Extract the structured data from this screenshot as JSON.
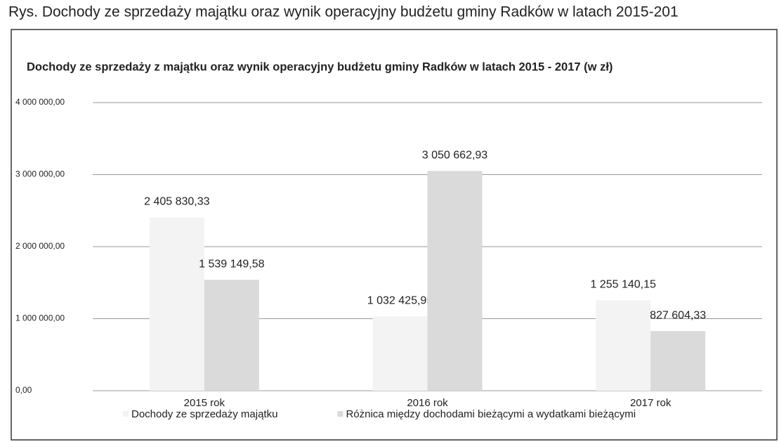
{
  "chart_data": {
    "type": "bar",
    "caption": "Rys. Dochody ze sprzedaży majątku oraz wynik operacyjny budżetu gminy Radków  w latach 2015-201",
    "title": "Dochody ze sprzedaży z majątku oraz wynik operacyjny budżetu gminy Radków  w latach 2015 - 2017 (w zł)",
    "categories": [
      "2015 rok",
      "2016 rok",
      "2017 rok"
    ],
    "series": [
      {
        "name": "Dochody ze sprzedaży majątku",
        "color": "#f3f3f3",
        "values": [
          2405830.33,
          1032425.95,
          1255140.15
        ],
        "value_labels": [
          "2 405 830,33",
          "1 032 425,95",
          "1 255 140,15"
        ]
      },
      {
        "name": "Różnica między dochodami bieżącymi a wydatkami bieżącymi",
        "color": "#dadada",
        "values": [
          1539149.58,
          3050662.93,
          827604.33
        ],
        "value_labels": [
          "1 539 149,58",
          "3 050 662,93",
          "827 604,33"
        ]
      }
    ],
    "ylim": [
      0,
      4000000
    ],
    "yticks": [
      {
        "value": 0,
        "label": "0,00"
      },
      {
        "value": 1000000,
        "label": "1 000 000,00"
      },
      {
        "value": 2000000,
        "label": "2 000 000,00"
      },
      {
        "value": 3000000,
        "label": "3 000 000,00"
      },
      {
        "value": 4000000,
        "label": "4 000 000,00"
      }
    ],
    "grid": true
  }
}
